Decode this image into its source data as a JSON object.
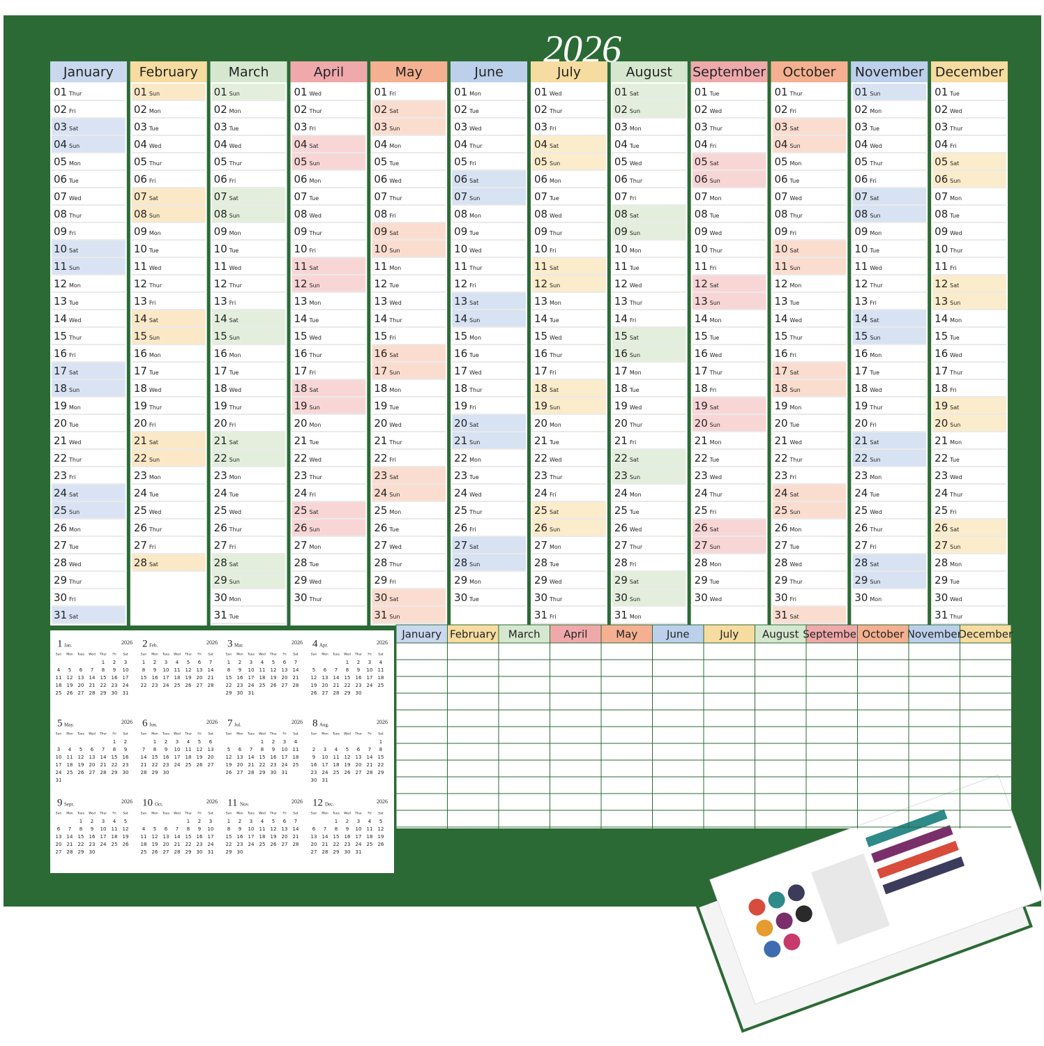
{
  "title": "2026",
  "day_numbers": [
    "01",
    "02",
    "03",
    "04",
    "05",
    "06",
    "07",
    "08",
    "09",
    "10",
    "11",
    "12",
    "13",
    "14",
    "15",
    "16",
    "17",
    "18",
    "19",
    "20",
    "21",
    "22",
    "23",
    "24",
    "25",
    "26",
    "27",
    "28",
    "29",
    "30",
    "31"
  ],
  "mini_header": [
    "Sun",
    "Mon",
    "Tues",
    "Wed",
    "Thur",
    "Fri",
    "Sat"
  ],
  "mini_day_numbers": [
    1,
    2,
    3,
    4,
    5,
    6,
    7,
    8,
    9,
    10,
    11,
    12,
    13,
    14,
    15,
    16,
    17,
    18,
    19,
    20,
    21,
    22,
    23,
    24,
    25,
    26,
    27,
    28,
    29,
    30,
    31
  ],
  "months": [
    {
      "name": "January",
      "number": 1,
      "mini_label": "Jan.",
      "header_color": "#c9d8ee",
      "weekend_color": "#d9e3f3",
      "weekdays": [
        "Thur",
        "Fri",
        "Sat",
        "Sun",
        "Mon",
        "Tue",
        "Wed",
        "Thur",
        "Fri",
        "Sat",
        "Sun",
        "Mon",
        "Tue",
        "Wed",
        "Thur",
        "Fri",
        "Sat",
        "Sun",
        "Mon",
        "Tue",
        "Wed",
        "Thur",
        "Fri",
        "Sat",
        "Sun",
        "Mon",
        "Tue",
        "Wed",
        "Thur",
        "Fri",
        "Sat"
      ]
    },
    {
      "name": "February",
      "number": 2,
      "mini_label": "Feb.",
      "header_color": "#f6dca0",
      "weekend_color": "#fbe8c6",
      "weekdays": [
        "Sun",
        "Mon",
        "Tue",
        "Wed",
        "Thur",
        "Fri",
        "Sat",
        "Sun",
        "Mon",
        "Tue",
        "Wed",
        "Thur",
        "Fri",
        "Sat",
        "Sun",
        "Mon",
        "Tue",
        "Wed",
        "Thur",
        "Fri",
        "Sat",
        "Sun",
        "Mon",
        "Tue",
        "Wed",
        "Thur",
        "Fri",
        "Sat"
      ]
    },
    {
      "name": "March",
      "number": 3,
      "mini_label": "Mar.",
      "header_color": "#d5e8cf",
      "weekend_color": "#e3efdc",
      "weekdays": [
        "Sun",
        "Mon",
        "Tue",
        "Wed",
        "Thur",
        "Fri",
        "Sat",
        "Sun",
        "Mon",
        "Tue",
        "Wed",
        "Thur",
        "Fri",
        "Sat",
        "Sun",
        "Mon",
        "Tue",
        "Wed",
        "Thur",
        "Fri",
        "Sat",
        "Sun",
        "Mon",
        "Tue",
        "Wed",
        "Thur",
        "Fri",
        "Sat",
        "Sun",
        "Mon",
        "Tue"
      ]
    },
    {
      "name": "April",
      "number": 4,
      "mini_label": "Apr.",
      "header_color": "#f0a9ab",
      "weekend_color": "#f8d6d6",
      "weekdays": [
        "Wed",
        "Thur",
        "Fri",
        "Sat",
        "Sun",
        "Mon",
        "Tue",
        "Wed",
        "Thur",
        "Fri",
        "Sat",
        "Sun",
        "Mon",
        "Tue",
        "Wed",
        "Thur",
        "Fri",
        "Sat",
        "Sun",
        "Mon",
        "Tue",
        "Wed",
        "Thur",
        "Fri",
        "Sat",
        "Sun",
        "Mon",
        "Tue",
        "Wed",
        "Thur"
      ]
    },
    {
      "name": "May",
      "number": 5,
      "mini_label": "May.",
      "header_color": "#f4b090",
      "weekend_color": "#fbddd0",
      "weekdays": [
        "Fri",
        "Sat",
        "Sun",
        "Mon",
        "Tue",
        "Wed",
        "Thur",
        "Fri",
        "Sat",
        "Sun",
        "Mon",
        "Tue",
        "Wed",
        "Thur",
        "Fri",
        "Sat",
        "Sun",
        "Mon",
        "Tue",
        "Wed",
        "Thur",
        "Fri",
        "Sat",
        "Sun",
        "Mon",
        "Tue",
        "Wed",
        "Thur",
        "Fri",
        "Sat",
        "Sun"
      ]
    },
    {
      "name": "June",
      "number": 6,
      "mini_label": "Jun.",
      "header_color": "#bcd0ec",
      "weekend_color": "#d7e2f2",
      "weekdays": [
        "Mon",
        "Tue",
        "Wed",
        "Thur",
        "Fri",
        "Sat",
        "Sun",
        "Mon",
        "Tue",
        "Wed",
        "Thur",
        "Fri",
        "Sat",
        "Sun",
        "Mon",
        "Tue",
        "Wed",
        "Thur",
        "Fri",
        "Sat",
        "Sun",
        "Mon",
        "Tue",
        "Wed",
        "Thur",
        "Fri",
        "Sat",
        "Sun",
        "Mon",
        "Tue"
      ]
    },
    {
      "name": "July",
      "number": 7,
      "mini_label": "Jul.",
      "header_color": "#f6dca0",
      "weekend_color": "#fbeccb",
      "weekdays": [
        "Wed",
        "Thur",
        "Fri",
        "Sat",
        "Sun",
        "Mon",
        "Tue",
        "Wed",
        "Thur",
        "Fri",
        "Sat",
        "Sun",
        "Mon",
        "Tue",
        "Wed",
        "Thur",
        "Fri",
        "Sat",
        "Sun",
        "Mon",
        "Tue",
        "Wed",
        "Thur",
        "Fri",
        "Sat",
        "Sun",
        "Mon",
        "Tue",
        "Wed",
        "Thur",
        "Fri"
      ]
    },
    {
      "name": "August",
      "number": 8,
      "mini_label": "Aug.",
      "header_color": "#d5e8cf",
      "weekend_color": "#e3efdc",
      "weekdays": [
        "Sat",
        "Sun",
        "Mon",
        "Tue",
        "Wed",
        "Thur",
        "Fri",
        "Sat",
        "Sun",
        "Mon",
        "Tue",
        "Wed",
        "Thur",
        "Fri",
        "Sat",
        "Sun",
        "Mon",
        "Tue",
        "Wed",
        "Thur",
        "Fri",
        "Sat",
        "Sun",
        "Mon",
        "Tue",
        "Wed",
        "Thur",
        "Fri",
        "Sat",
        "Sun",
        "Mon"
      ]
    },
    {
      "name": "September",
      "number": 9,
      "mini_label": "Sept.",
      "header_color": "#f0a9ab",
      "weekend_color": "#f8d6d6",
      "weekdays": [
        "Tue",
        "Wed",
        "Thur",
        "Fri",
        "Sat",
        "Sun",
        "Mon",
        "Tue",
        "Wed",
        "Thur",
        "Fri",
        "Sat",
        "Sun",
        "Mon",
        "Tue",
        "Wed",
        "Thur",
        "Fri",
        "Sat",
        "Sun",
        "Mon",
        "Tue",
        "Wed",
        "Thur",
        "Fri",
        "Sat",
        "Sun",
        "Mon",
        "Tue",
        "Wed"
      ]
    },
    {
      "name": "October",
      "number": 10,
      "mini_label": "Oct.",
      "header_color": "#f4b090",
      "weekend_color": "#fbddd0",
      "weekdays": [
        "Thur",
        "Fri",
        "Sat",
        "Sun",
        "Mon",
        "Tue",
        "Wed",
        "Thur",
        "Fri",
        "Sat",
        "Sun",
        "Mon",
        "Tue",
        "Wed",
        "Thur",
        "Fri",
        "Sat",
        "Sun",
        "Mon",
        "Tue",
        "Wed",
        "Thur",
        "Fri",
        "Sat",
        "Sun",
        "Mon",
        "Tue",
        "Wed",
        "Thur",
        "Fri",
        "Sat"
      ]
    },
    {
      "name": "November",
      "number": 11,
      "mini_label": "Nov.",
      "header_color": "#bcd0ec",
      "weekend_color": "#d7e2f2",
      "weekdays": [
        "Sun",
        "Mon",
        "Tue",
        "Wed",
        "Thur",
        "Fri",
        "Sat",
        "Sun",
        "Mon",
        "Tue",
        "Wed",
        "Thur",
        "Fri",
        "Sat",
        "Sun",
        "Mon",
        "Tue",
        "Wed",
        "Thur",
        "Fri",
        "Sat",
        "Sun",
        "Mon",
        "Tue",
        "Wed",
        "Thur",
        "Fri",
        "Sat",
        "Sun",
        "Mon"
      ]
    },
    {
      "name": "December",
      "number": 12,
      "mini_label": "Dec.",
      "header_color": "#f6dca0",
      "weekend_color": "#fbeccb",
      "weekdays": [
        "Tue",
        "Wed",
        "Thur",
        "Fri",
        "Sat",
        "Sun",
        "Mon",
        "Tue",
        "Wed",
        "Thur",
        "Fri",
        "Sat",
        "Sun",
        "Mon",
        "Tue",
        "Wed",
        "Thur",
        "Fri",
        "Sat",
        "Sun",
        "Mon",
        "Tue",
        "Wed",
        "Thur",
        "Fri",
        "Sat",
        "Sun",
        "Mon",
        "Tue",
        "Wed",
        "Thur"
      ]
    }
  ]
}
